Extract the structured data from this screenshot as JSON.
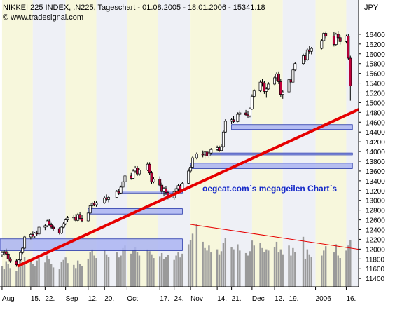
{
  "header": {
    "title": "NIKKEI 225 INDEX, .N225, Tageschart - 01.08.2005 - 18.01.2006 - 15341.18",
    "watermark": "© www.tradesignal.com",
    "annotation": "oegeat.com´s megageilen Chart´s"
  },
  "colors": {
    "up_candle": "#ffffff",
    "down_candle": "#c0003a",
    "wick": "#000000",
    "trendline": "#e60000",
    "zone_fill": "#aab4f2",
    "zone_stroke": "#2233aa",
    "volume_fill": "#9a9a9a",
    "stripe": "#f7f7dc"
  },
  "chart_data": {
    "type": "candlestick",
    "title": "NIKKEI 225 INDEX, .N225, Tageschart - 01.08.2005 - 18.01.2006 - 15341.18",
    "currency": "JPY",
    "y_ticks": [
      11400,
      11600,
      11800,
      12000,
      12200,
      12400,
      12600,
      12800,
      13000,
      13200,
      13400,
      13600,
      13800,
      14000,
      14200,
      14400,
      14600,
      14800,
      15000,
      15200,
      15400,
      15600,
      15800,
      16000,
      16200,
      16400
    ],
    "ylim": [
      11230,
      16700
    ],
    "x_tick_labels": [
      "Aug",
      "15.",
      "22.",
      "Sep",
      "12.",
      "20.",
      "Oct",
      "17.",
      "24.",
      "Nov",
      "14.",
      "21.",
      "Dec",
      "12.",
      "19.",
      "2006",
      "16."
    ],
    "x_tick_dates": [
      "2005-08-01",
      "2005-08-15",
      "2005-08-22",
      "2005-09-01",
      "2005-09-12",
      "2005-09-20",
      "2005-10-01",
      "2005-10-17",
      "2005-10-24",
      "2005-11-01",
      "2005-11-14",
      "2005-11-21",
      "2005-12-01",
      "2005-12-12",
      "2005-12-19",
      "2006-01-01",
      "2006-01-16"
    ],
    "xlim": [
      "2005-07-31",
      "2006-01-22"
    ],
    "candles": [
      [
        "2005-08-01",
        11890,
        11960,
        11840,
        11930
      ],
      [
        "2005-08-02",
        11930,
        11990,
        11870,
        11950
      ],
      [
        "2005-08-03",
        11950,
        12010,
        11890,
        11900
      ],
      [
        "2005-08-04",
        11900,
        11930,
        11780,
        11800
      ],
      [
        "2005-08-05",
        11800,
        11830,
        11720,
        11760
      ],
      [
        "2005-08-08",
        11760,
        11790,
        11640,
        11680
      ],
      [
        "2005-08-09",
        11680,
        11800,
        11650,
        11780
      ],
      [
        "2005-08-10",
        11780,
        11960,
        11760,
        11930
      ],
      [
        "2005-08-11",
        11930,
        12040,
        11900,
        12020
      ],
      [
        "2005-08-12",
        12020,
        12280,
        12000,
        12250
      ],
      [
        "2005-08-15",
        12250,
        12330,
        12200,
        12300
      ],
      [
        "2005-08-16",
        12300,
        12360,
        12240,
        12270
      ],
      [
        "2005-08-17",
        12270,
        12350,
        12230,
        12330
      ],
      [
        "2005-08-18",
        12330,
        12380,
        12270,
        12310
      ],
      [
        "2005-08-19",
        12310,
        12470,
        12280,
        12450
      ],
      [
        "2005-08-22",
        12450,
        12510,
        12390,
        12480
      ],
      [
        "2005-08-23",
        12480,
        12600,
        12450,
        12580
      ],
      [
        "2005-08-24",
        12580,
        12620,
        12480,
        12500
      ],
      [
        "2005-08-25",
        12500,
        12540,
        12420,
        12450
      ],
      [
        "2005-08-26",
        12450,
        12490,
        12370,
        12420
      ],
      [
        "2005-08-29",
        12420,
        12450,
        12300,
        12330
      ],
      [
        "2005-08-30",
        12330,
        12470,
        12310,
        12450
      ],
      [
        "2005-08-31",
        12450,
        12560,
        12430,
        12520
      ],
      [
        "2005-09-01",
        12520,
        12630,
        12490,
        12600
      ],
      [
        "2005-09-02",
        12600,
        12680,
        12560,
        12640
      ],
      [
        "2005-09-05",
        12640,
        12700,
        12590,
        12660
      ],
      [
        "2005-09-06",
        12660,
        12720,
        12560,
        12590
      ],
      [
        "2005-09-07",
        12590,
        12740,
        12570,
        12710
      ],
      [
        "2005-09-08",
        12710,
        12760,
        12600,
        12630
      ],
      [
        "2005-09-09",
        12630,
        12700,
        12550,
        12580
      ],
      [
        "2005-09-12",
        12580,
        12760,
        12560,
        12740
      ],
      [
        "2005-09-13",
        12740,
        12910,
        12720,
        12890
      ],
      [
        "2005-09-14",
        12890,
        12970,
        12850,
        12940
      ],
      [
        "2005-09-15",
        12940,
        12990,
        12880,
        12910
      ],
      [
        "2005-09-16",
        12910,
        12980,
        12870,
        12950
      ],
      [
        "2005-09-20",
        12950,
        13080,
        12930,
        13050
      ],
      [
        "2005-09-21",
        13050,
        13120,
        12980,
        13020
      ],
      [
        "2005-09-22",
        13020,
        13090,
        12960,
        13060
      ],
      [
        "2005-09-26",
        13060,
        13210,
        13040,
        13180
      ],
      [
        "2005-09-27",
        13180,
        13230,
        13110,
        13150
      ],
      [
        "2005-09-28",
        13150,
        13300,
        13130,
        13270
      ],
      [
        "2005-09-29",
        13270,
        13410,
        13250,
        13380
      ],
      [
        "2005-09-30",
        13380,
        13520,
        13360,
        13500
      ],
      [
        "2005-10-03",
        13500,
        13560,
        13420,
        13450
      ],
      [
        "2005-10-04",
        13450,
        13640,
        13430,
        13600
      ],
      [
        "2005-10-05",
        13600,
        13700,
        13560,
        13660
      ],
      [
        "2005-10-06",
        13660,
        13700,
        13500,
        13540
      ],
      [
        "2005-10-07",
        13540,
        13650,
        13500,
        13620
      ],
      [
        "2005-10-11",
        13620,
        13780,
        13600,
        13740
      ],
      [
        "2005-10-12",
        13740,
        13780,
        13520,
        13560
      ],
      [
        "2005-10-13",
        13560,
        13600,
        13340,
        13380
      ],
      [
        "2005-10-14",
        13380,
        13470,
        13350,
        13430
      ],
      [
        "2005-10-17",
        13430,
        13490,
        13280,
        13310
      ],
      [
        "2005-10-18",
        13310,
        13360,
        13140,
        13180
      ],
      [
        "2005-10-19",
        13180,
        13270,
        13080,
        13240
      ],
      [
        "2005-10-20",
        13240,
        13290,
        13110,
        13160
      ],
      [
        "2005-10-21",
        13160,
        13200,
        13020,
        13050
      ],
      [
        "2005-10-24",
        13050,
        13200,
        13010,
        13180
      ],
      [
        "2005-10-25",
        13180,
        13270,
        13140,
        13240
      ],
      [
        "2005-10-26",
        13240,
        13340,
        13190,
        13300
      ],
      [
        "2005-10-27",
        13300,
        13330,
        13160,
        13200
      ],
      [
        "2005-10-28",
        13200,
        13380,
        13170,
        13350
      ],
      [
        "2005-10-31",
        13350,
        13650,
        13330,
        13600
      ],
      [
        "2005-11-01",
        13600,
        13720,
        13560,
        13680
      ],
      [
        "2005-11-02",
        13680,
        13900,
        13660,
        13870
      ],
      [
        "2005-11-04",
        13870,
        13980,
        13840,
        13950
      ],
      [
        "2005-11-07",
        13950,
        14020,
        13880,
        13930
      ],
      [
        "2005-11-08",
        13930,
        14010,
        13850,
        13990
      ],
      [
        "2005-11-09",
        13990,
        14050,
        13880,
        13910
      ],
      [
        "2005-11-10",
        13910,
        14000,
        13870,
        13970
      ],
      [
        "2005-11-11",
        13970,
        14070,
        13940,
        14040
      ],
      [
        "2005-11-14",
        14040,
        14120,
        14000,
        14080
      ],
      [
        "2005-11-15",
        14080,
        14120,
        13990,
        14020
      ],
      [
        "2005-11-16",
        14020,
        14150,
        14000,
        14100
      ],
      [
        "2005-11-17",
        14100,
        14430,
        14080,
        14400
      ],
      [
        "2005-11-18",
        14400,
        14660,
        14380,
        14620
      ],
      [
        "2005-11-21",
        14620,
        14690,
        14560,
        14650
      ],
      [
        "2005-11-22",
        14650,
        14720,
        14580,
        14610
      ],
      [
        "2005-11-24",
        14610,
        14800,
        14600,
        14760
      ],
      [
        "2005-11-25",
        14760,
        14840,
        14710,
        14790
      ],
      [
        "2005-11-28",
        14790,
        14850,
        14720,
        14750
      ],
      [
        "2005-11-29",
        14750,
        14820,
        14680,
        14730
      ],
      [
        "2005-11-30",
        14730,
        14900,
        14700,
        14870
      ],
      [
        "2005-12-01",
        14870,
        15170,
        14850,
        15130
      ],
      [
        "2005-12-02",
        15130,
        15280,
        15100,
        15240
      ],
      [
        "2005-12-05",
        15240,
        15460,
        15220,
        15420
      ],
      [
        "2005-12-06",
        15420,
        15480,
        15330,
        15400
      ],
      [
        "2005-12-07",
        15400,
        15440,
        15180,
        15230
      ],
      [
        "2005-12-08",
        15230,
        15320,
        15100,
        15280
      ],
      [
        "2005-12-09",
        15280,
        15420,
        15250,
        15380
      ],
      [
        "2005-12-12",
        15380,
        15550,
        15360,
        15510
      ],
      [
        "2005-12-13",
        15510,
        15620,
        15450,
        15590
      ],
      [
        "2005-12-14",
        15590,
        15640,
        15380,
        15430
      ],
      [
        "2005-12-15",
        15430,
        15480,
        15120,
        15170
      ],
      [
        "2005-12-16",
        15170,
        15260,
        15080,
        15220
      ],
      [
        "2005-12-19",
        15220,
        15500,
        15200,
        15470
      ],
      [
        "2005-12-20",
        15470,
        15530,
        15380,
        15420
      ],
      [
        "2005-12-21",
        15420,
        15700,
        15400,
        15670
      ],
      [
        "2005-12-22",
        15670,
        15830,
        15650,
        15800
      ],
      [
        "2005-12-26",
        15800,
        16000,
        15780,
        15960
      ],
      [
        "2005-12-27",
        15960,
        16030,
        15840,
        15880
      ],
      [
        "2005-12-28",
        15880,
        16120,
        15860,
        16080
      ],
      [
        "2005-12-29",
        16080,
        16160,
        16000,
        16050
      ],
      [
        "2005-12-30",
        16050,
        16140,
        15990,
        16110
      ],
      [
        "2006-01-04",
        16110,
        16300,
        16090,
        16270
      ],
      [
        "2006-01-05",
        16270,
        16450,
        16250,
        16420
      ],
      [
        "2006-01-06",
        16420,
        16460,
        16320,
        16360
      ],
      [
        "2006-01-10",
        16360,
        16450,
        16150,
        16190
      ],
      [
        "2006-01-11",
        16190,
        16430,
        16170,
        16400
      ],
      [
        "2006-01-12",
        16400,
        16470,
        16300,
        16330
      ],
      [
        "2006-01-13",
        16330,
        16380,
        16190,
        16250
      ],
      [
        "2006-01-16",
        16250,
        16390,
        16210,
        16360
      ],
      [
        "2006-01-17",
        16360,
        16400,
        15880,
        15910
      ],
      [
        "2006-01-18",
        15910,
        15960,
        15040,
        15341
      ]
    ],
    "volume": {
      "values": [
        0.33,
        0.28,
        0.41,
        0.36,
        0.3,
        0.25,
        0.38,
        0.44,
        0.35,
        0.48,
        0.4,
        0.37,
        0.33,
        0.42,
        0.46,
        0.39,
        0.5,
        0.45,
        0.36,
        0.31,
        0.28,
        0.4,
        0.43,
        0.47,
        0.38,
        0.35,
        0.3,
        0.42,
        0.37,
        0.33,
        0.45,
        0.55,
        0.6,
        0.5,
        0.46,
        0.58,
        0.52,
        0.48,
        0.55,
        0.47,
        0.5,
        0.62,
        0.66,
        0.53,
        0.58,
        0.63,
        0.55,
        0.5,
        0.6,
        0.57,
        0.52,
        0.46,
        0.49,
        0.54,
        0.44,
        0.48,
        0.51,
        0.43,
        0.5,
        0.55,
        0.47,
        0.53,
        0.68,
        0.75,
        0.85,
        1.0,
        0.72,
        0.62,
        0.58,
        0.66,
        0.55,
        0.6,
        0.52,
        0.57,
        0.7,
        0.78,
        0.64,
        0.6,
        0.68,
        0.58,
        0.54,
        0.5,
        0.57,
        0.74,
        0.66,
        0.7,
        0.62,
        0.56,
        0.6,
        0.58,
        0.64,
        0.72,
        0.55,
        0.6,
        0.52,
        0.66,
        0.5,
        0.62,
        0.56,
        0.8,
        0.45,
        0.6,
        0.52,
        0.48,
        0.5,
        0.58,
        0.65,
        0.55,
        0.68,
        0.5,
        0.46,
        0.58,
        0.66,
        0.75
      ]
    },
    "trendline": [
      [
        "2005-08-09",
        11660
      ],
      [
        "2006-01-22",
        14860
      ]
    ],
    "volume_trendline": [
      [
        "2005-11-01",
        1.0
      ],
      [
        "2006-01-22",
        0.6
      ]
    ],
    "zones": [
      {
        "from": "2005-07-31",
        "to": "2005-10-28",
        "low": 11970,
        "high": 12210
      },
      {
        "from": "2005-09-12",
        "to": "2005-10-28",
        "low": 12720,
        "high": 12830
      },
      {
        "from": "2005-09-27",
        "to": "2005-10-28",
        "low": 13150,
        "high": 13190
      },
      {
        "from": "2005-11-01",
        "to": "2006-01-19",
        "low": 13650,
        "high": 13760
      },
      {
        "from": "2005-11-09",
        "to": "2006-01-19",
        "low": 13930,
        "high": 13970
      },
      {
        "from": "2005-11-21",
        "to": "2006-01-19",
        "low": 14450,
        "high": 14550
      }
    ],
    "grid": {
      "vertical_stripes": true,
      "horizontal_lines": false
    },
    "legend": "none"
  }
}
